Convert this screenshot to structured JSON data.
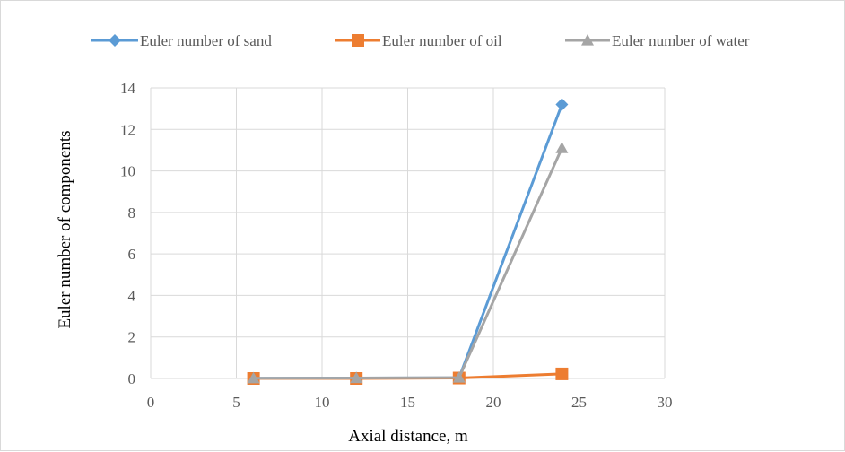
{
  "chart_data": {
    "type": "line",
    "xlabel": "Axial distance, m",
    "ylabel": "Euler number of components",
    "xlim": [
      0,
      30
    ],
    "ylim": [
      0,
      14
    ],
    "xticks": [
      0,
      5,
      10,
      15,
      20,
      25,
      30
    ],
    "yticks": [
      0,
      2,
      4,
      6,
      8,
      10,
      12,
      14
    ],
    "grid": true,
    "legend_position": "top",
    "x": [
      6,
      12,
      18,
      24
    ],
    "series": [
      {
        "name": "Euler number of sand",
        "values": [
          0.01,
          0.02,
          0.03,
          13.2
        ],
        "color": "#5B9BD5",
        "marker": "diamond"
      },
      {
        "name": "Euler number of oil",
        "values": [
          0.0,
          0.0,
          0.02,
          0.22
        ],
        "color": "#ED7D31",
        "marker": "square"
      },
      {
        "name": "Euler number of water",
        "values": [
          0.01,
          0.02,
          0.04,
          11.1
        ],
        "color": "#A5A5A5",
        "marker": "triangle"
      }
    ]
  }
}
